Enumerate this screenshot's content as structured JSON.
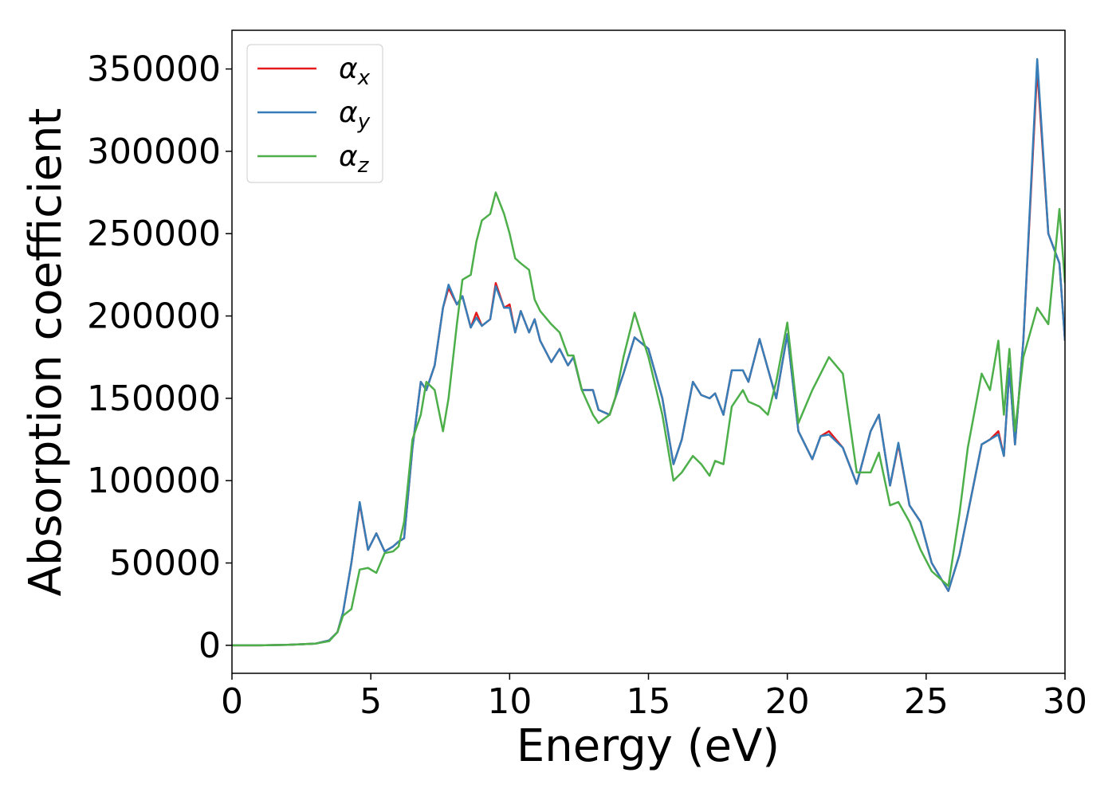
{
  "chart_data": {
    "type": "line",
    "xlabel": "Energy (eV)",
    "ylabel": "Absorption coefficient",
    "x": [
      0,
      1,
      2,
      3,
      3.5,
      3.8,
      4,
      4.3,
      4.6,
      4.9,
      5.2,
      5.5,
      5.8,
      6,
      6.2,
      6.5,
      6.8,
      7,
      7.3,
      7.6,
      7.8,
      8.1,
      8.3,
      8.6,
      8.8,
      9,
      9.3,
      9.5,
      9.8,
      10,
      10.2,
      10.4,
      10.7,
      10.9,
      11.1,
      11.5,
      11.8,
      12.1,
      12.3,
      12.6,
      13,
      13.2,
      13.6,
      13.8,
      14.1,
      14.5,
      15,
      15.5,
      15.9,
      16.2,
      16.6,
      16.9,
      17.2,
      17.4,
      17.7,
      18,
      18.4,
      18.6,
      19,
      19.3,
      19.6,
      20,
      20.4,
      20.9,
      21.2,
      21.5,
      22,
      22.5,
      23,
      23.3,
      23.7,
      24,
      24.4,
      24.8,
      25.2,
      25.8,
      26.2,
      26.5,
      27,
      27.3,
      27.6,
      27.8,
      28,
      28.2,
      28.5,
      29,
      29.4,
      29.8,
      30
    ],
    "series": [
      {
        "name": "αx",
        "color": "#e41a1c",
        "values": [
          0,
          0,
          300,
          1000,
          3000,
          8000,
          20000,
          50000,
          86000,
          58000,
          68000,
          57000,
          60000,
          63000,
          65000,
          120000,
          160000,
          155000,
          170000,
          205000,
          217000,
          207000,
          212000,
          193000,
          202000,
          194000,
          198000,
          220000,
          205000,
          207000,
          190000,
          203000,
          190000,
          198000,
          185000,
          172000,
          180000,
          170000,
          175000,
          155000,
          155000,
          143000,
          140000,
          150000,
          165000,
          187000,
          180000,
          150000,
          110000,
          125000,
          160000,
          152000,
          150000,
          153000,
          140000,
          167000,
          167000,
          160000,
          186000,
          168000,
          150000,
          189000,
          130000,
          113000,
          127000,
          130000,
          120000,
          98000,
          130000,
          140000,
          97000,
          122000,
          85000,
          75000,
          50000,
          33000,
          55000,
          80000,
          122000,
          125000,
          130000,
          115000,
          168000,
          122000,
          185000,
          350000,
          250000,
          232000,
          185000
        ]
      },
      {
        "name": "αy",
        "color": "#377eb8",
        "values": [
          0,
          0,
          300,
          1000,
          3000,
          8000,
          20000,
          50000,
          87000,
          58000,
          68000,
          57000,
          60000,
          63000,
          65000,
          120000,
          160000,
          155000,
          170000,
          205000,
          219000,
          207000,
          212000,
          193000,
          199000,
          194000,
          198000,
          218000,
          205000,
          205000,
          190000,
          203000,
          190000,
          198000,
          185000,
          172000,
          180000,
          170000,
          175000,
          155000,
          155000,
          143000,
          140000,
          150000,
          165000,
          187000,
          180000,
          150000,
          110000,
          125000,
          160000,
          152000,
          150000,
          153000,
          140000,
          167000,
          167000,
          160000,
          186000,
          168000,
          150000,
          189000,
          130000,
          113000,
          127000,
          128000,
          120000,
          98000,
          130000,
          140000,
          97000,
          123000,
          85000,
          75000,
          50000,
          33000,
          55000,
          80000,
          122000,
          125000,
          128000,
          115000,
          168000,
          122000,
          185000,
          356000,
          250000,
          232000,
          185000
        ]
      },
      {
        "name": "αz",
        "color": "#4daf4a",
        "values": [
          0,
          0,
          300,
          1000,
          2500,
          8000,
          18000,
          22000,
          46000,
          47000,
          44000,
          56000,
          57000,
          60000,
          75000,
          125000,
          140000,
          160000,
          155000,
          130000,
          150000,
          195000,
          222000,
          225000,
          245000,
          258000,
          262000,
          275000,
          262000,
          250000,
          235000,
          232000,
          228000,
          210000,
          203000,
          195000,
          190000,
          176000,
          176000,
          155000,
          140000,
          135000,
          140000,
          150000,
          175000,
          202000,
          175000,
          140000,
          100000,
          105000,
          115000,
          110000,
          103000,
          112000,
          110000,
          145000,
          155000,
          148000,
          145000,
          140000,
          160000,
          196000,
          135000,
          155000,
          165000,
          175000,
          165000,
          105000,
          105000,
          117000,
          85000,
          87000,
          75000,
          58000,
          45000,
          36000,
          80000,
          120000,
          165000,
          155000,
          185000,
          140000,
          180000,
          130000,
          175000,
          205000,
          195000,
          265000,
          220000
        ]
      }
    ],
    "xlim": [
      0,
      30
    ],
    "xticks": [
      0,
      5,
      10,
      15,
      20,
      25,
      30
    ],
    "ylim": [
      -17000,
      373500
    ],
    "yticks": [
      0,
      50000,
      100000,
      150000,
      200000,
      250000,
      300000,
      350000
    ],
    "legend": "upper left"
  }
}
